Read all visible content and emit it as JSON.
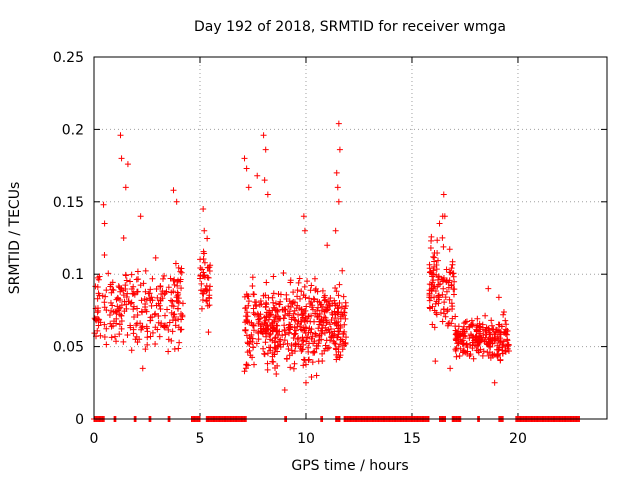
{
  "chart_data": {
    "type": "scatter",
    "title": "Day 192 of 2018, SRMTID for receiver wmga",
    "xlabel": "GPS time / hours",
    "ylabel": "SRMTID / TECUs",
    "xlim": [
      0,
      24.2
    ],
    "ylim": [
      0,
      0.25
    ],
    "x_ticks": [
      0,
      5,
      10,
      15,
      20
    ],
    "x_tick_labels": [
      "0",
      "5",
      "10",
      "15",
      "20"
    ],
    "y_ticks": [
      0,
      0.05,
      0.1,
      0.15,
      0.2,
      0.25
    ],
    "y_tick_labels": [
      "0",
      "0.05",
      "0.1",
      "0.15",
      "0.2",
      "0.25"
    ],
    "grid": true,
    "marker": "+",
    "color": "#ff0000",
    "clusters": [
      {
        "x_start": 0.0,
        "x_end": 4.2,
        "y_center": 0.078,
        "y_spread": 0.022,
        "n": 260
      },
      {
        "x_start": 5.0,
        "x_end": 5.5,
        "y_center": 0.095,
        "y_spread": 0.02,
        "n": 45
      },
      {
        "x_start": 7.1,
        "x_end": 11.9,
        "y_center": 0.065,
        "y_spread": 0.022,
        "n": 520
      },
      {
        "x_start": 15.8,
        "x_end": 17.0,
        "y_center": 0.09,
        "y_spread": 0.022,
        "n": 110
      },
      {
        "x_start": 17.0,
        "x_end": 19.6,
        "y_center": 0.056,
        "y_spread": 0.012,
        "n": 230
      }
    ],
    "highlights": [
      {
        "x": 1.25,
        "y": 0.196
      },
      {
        "x": 1.3,
        "y": 0.18
      },
      {
        "x": 1.6,
        "y": 0.176
      },
      {
        "x": 1.5,
        "y": 0.16
      },
      {
        "x": 0.45,
        "y": 0.148
      },
      {
        "x": 0.5,
        "y": 0.135
      },
      {
        "x": 2.2,
        "y": 0.14
      },
      {
        "x": 3.75,
        "y": 0.158
      },
      {
        "x": 3.9,
        "y": 0.15
      },
      {
        "x": 1.4,
        "y": 0.125
      },
      {
        "x": 5.15,
        "y": 0.145
      },
      {
        "x": 5.2,
        "y": 0.13
      },
      {
        "x": 5.4,
        "y": 0.06
      },
      {
        "x": 7.1,
        "y": 0.18
      },
      {
        "x": 7.2,
        "y": 0.173
      },
      {
        "x": 7.3,
        "y": 0.16
      },
      {
        "x": 8.0,
        "y": 0.196
      },
      {
        "x": 8.1,
        "y": 0.186
      },
      {
        "x": 8.05,
        "y": 0.165
      },
      {
        "x": 7.7,
        "y": 0.168
      },
      {
        "x": 8.2,
        "y": 0.155
      },
      {
        "x": 9.9,
        "y": 0.14
      },
      {
        "x": 9.95,
        "y": 0.13
      },
      {
        "x": 11.55,
        "y": 0.204
      },
      {
        "x": 11.6,
        "y": 0.186
      },
      {
        "x": 11.45,
        "y": 0.17
      },
      {
        "x": 11.5,
        "y": 0.16
      },
      {
        "x": 11.55,
        "y": 0.15
      },
      {
        "x": 11.4,
        "y": 0.13
      },
      {
        "x": 11.0,
        "y": 0.12
      },
      {
        "x": 7.1,
        "y": 0.033
      },
      {
        "x": 9.0,
        "y": 0.02
      },
      {
        "x": 10.0,
        "y": 0.025
      },
      {
        "x": 10.5,
        "y": 0.03
      },
      {
        "x": 2.3,
        "y": 0.035
      },
      {
        "x": 15.9,
        "y": 0.123
      },
      {
        "x": 16.5,
        "y": 0.155
      },
      {
        "x": 16.45,
        "y": 0.14
      },
      {
        "x": 16.55,
        "y": 0.14
      },
      {
        "x": 16.0,
        "y": 0.112
      },
      {
        "x": 16.3,
        "y": 0.135
      },
      {
        "x": 16.1,
        "y": 0.04
      },
      {
        "x": 16.8,
        "y": 0.035
      },
      {
        "x": 18.6,
        "y": 0.09
      },
      {
        "x": 19.1,
        "y": 0.084
      },
      {
        "x": 18.9,
        "y": 0.025
      },
      {
        "x": 19.3,
        "y": 0.072
      },
      {
        "x": 17.6,
        "y": 0.045
      }
    ],
    "zero_segments": [
      [
        0.0,
        0.5
      ],
      [
        0.95,
        1.05
      ],
      [
        1.9,
        2.0
      ],
      [
        2.6,
        2.7
      ],
      [
        3.5,
        3.6
      ],
      [
        4.6,
        5.0
      ],
      [
        5.3,
        7.2
      ],
      [
        9.0,
        9.1
      ],
      [
        10.7,
        10.8
      ],
      [
        11.4,
        11.6
      ],
      [
        11.8,
        15.8
      ],
      [
        16.3,
        16.6
      ],
      [
        16.9,
        17.3
      ],
      [
        18.1,
        18.2
      ],
      [
        19.1,
        19.3
      ],
      [
        19.9,
        22.9
      ]
    ]
  }
}
